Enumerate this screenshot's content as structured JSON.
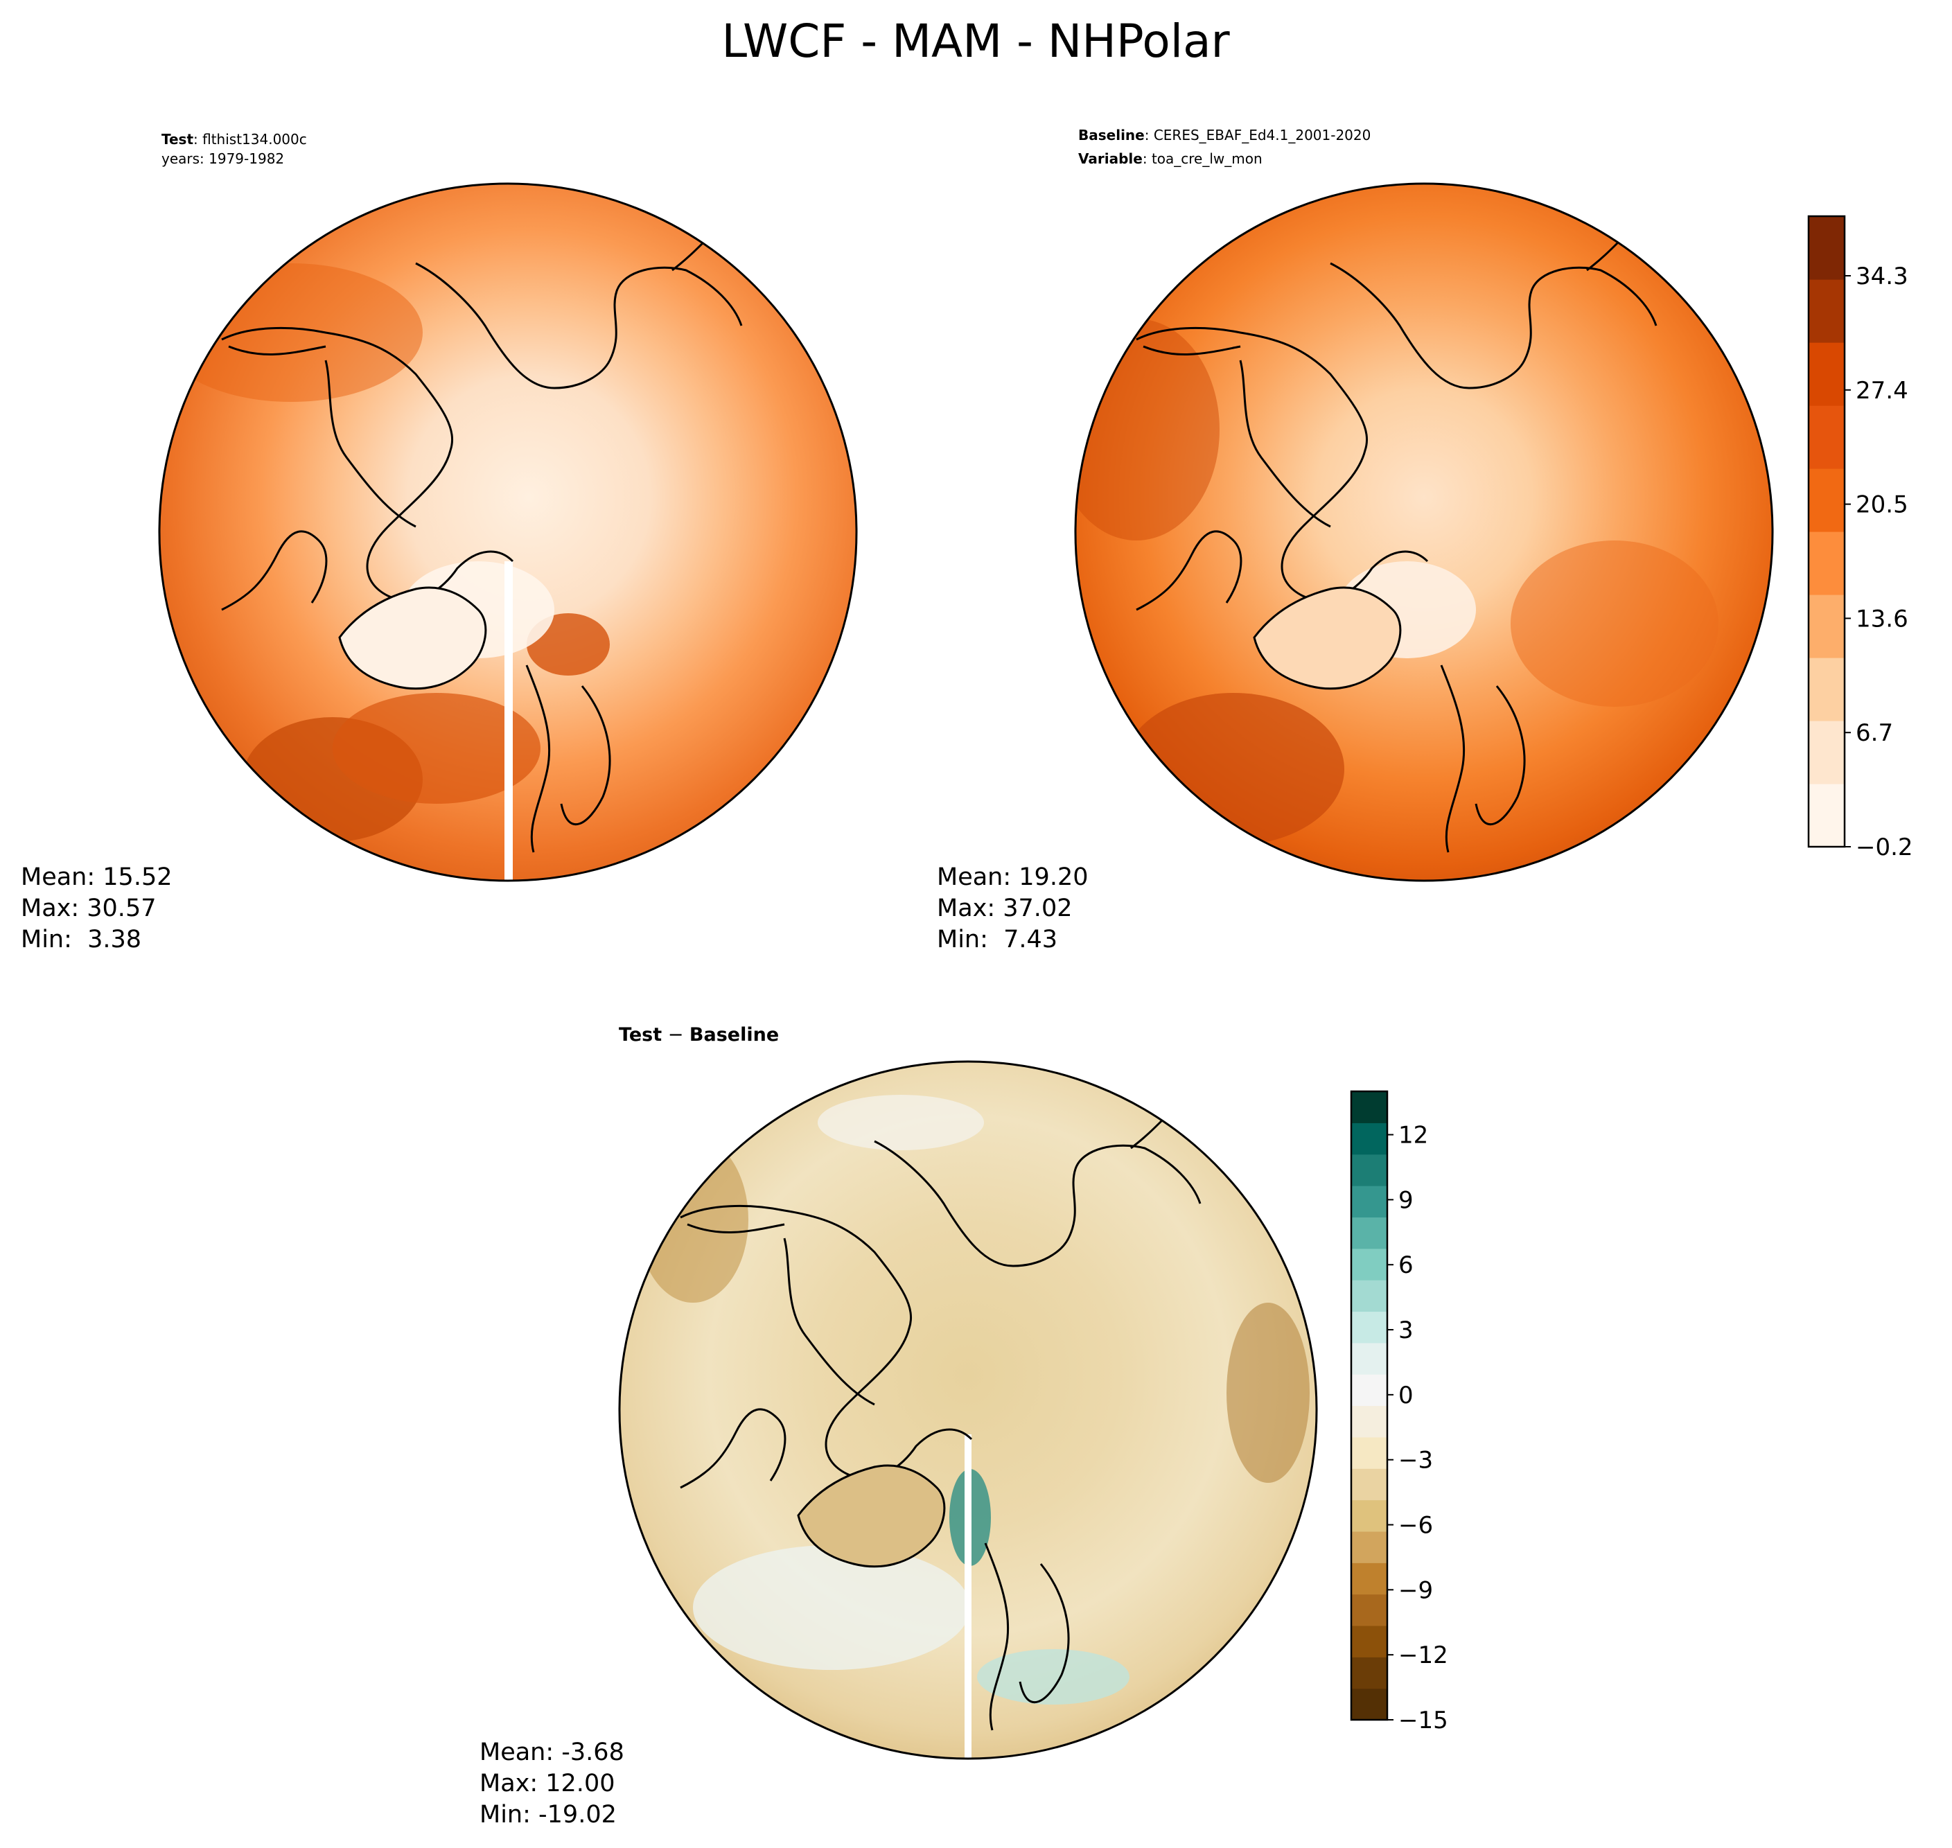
{
  "figure": {
    "title": "LWCF - MAM - NHPolar"
  },
  "panels": {
    "test": {
      "header_line1_bold": "Test",
      "header_line1_rest": ": flthist134.000c",
      "header_line2": "years: 1979-1982",
      "stats": {
        "mean": "Mean: 15.52",
        "max": "Max: 30.57",
        "min": "Min:  3.38"
      }
    },
    "baseline": {
      "header_line1_bold": "Baseline",
      "header_line1_rest": ": CERES_EBAF_Ed4.1_2001-2020",
      "header_line2_bold": "Variable",
      "header_line2_rest": ": toa_cre_lw_mon",
      "stats": {
        "mean": "Mean: 19.20",
        "max": "Max: 37.02",
        "min": "Min:  7.43"
      }
    },
    "diff": {
      "title_a": "Test",
      "title_sep": " − ",
      "title_b": "Baseline",
      "stats": {
        "mean": "Mean: -3.68",
        "max": "Max: 12.00",
        "min": "Min: -19.02"
      }
    }
  },
  "chart_data": [
    {
      "type": "heatmap",
      "projection": "north-polar-stereographic",
      "panel": "Test: flthist134.000c (years: 1979-1982)",
      "statistics": {
        "mean": 15.52,
        "max": 30.57,
        "min": 3.38
      },
      "colormap": "Oranges",
      "shared_colorbar": "top"
    },
    {
      "type": "heatmap",
      "projection": "north-polar-stereographic",
      "panel": "Baseline: CERES_EBAF_Ed4.1_2001-2020",
      "statistics": {
        "mean": 19.2,
        "max": 37.02,
        "min": 7.43
      },
      "colormap": "Oranges"
    },
    {
      "type": "heatmap",
      "projection": "north-polar-stereographic",
      "panel": "Test − Baseline",
      "statistics": {
        "mean": -3.68,
        "max": 12.0,
        "min": -19.02
      },
      "colormap": "BrBG"
    }
  ],
  "colorbars": {
    "top": {
      "range": [
        -0.2,
        37.9
      ],
      "tick_values": [
        -0.2,
        6.7,
        13.6,
        20.5,
        27.4,
        34.3
      ],
      "tick_labels": [
        "−0.2",
        "6.7",
        "13.6",
        "20.5",
        "27.4",
        "34.3"
      ],
      "colors": [
        "#fff5eb",
        "#fee6ce",
        "#fdd0a2",
        "#fdae6b",
        "#fd8d3c",
        "#f16913",
        "#e6550d",
        "#d94801",
        "#a63603",
        "#7f2704"
      ]
    },
    "diff": {
      "range": [
        -15,
        14
      ],
      "tick_values": [
        -15,
        -12,
        -9,
        -6,
        -3,
        0,
        3,
        6,
        9,
        12
      ],
      "tick_labels": [
        "−15",
        "−12",
        "−9",
        "−6",
        "−3",
        "0",
        "3",
        "6",
        "9",
        "12"
      ],
      "colors": [
        "#543005",
        "#6b3d07",
        "#8c510a",
        "#a8681d",
        "#bf812d",
        "#d2a55d",
        "#dfc27d",
        "#ead3a2",
        "#f6e8c3",
        "#f5eede",
        "#f5f5f5",
        "#e4f1ef",
        "#c7eae5",
        "#a3dad2",
        "#80cdc1",
        "#5ab3a8",
        "#35978f",
        "#1c7e75",
        "#01665e",
        "#003c30"
      ]
    }
  }
}
